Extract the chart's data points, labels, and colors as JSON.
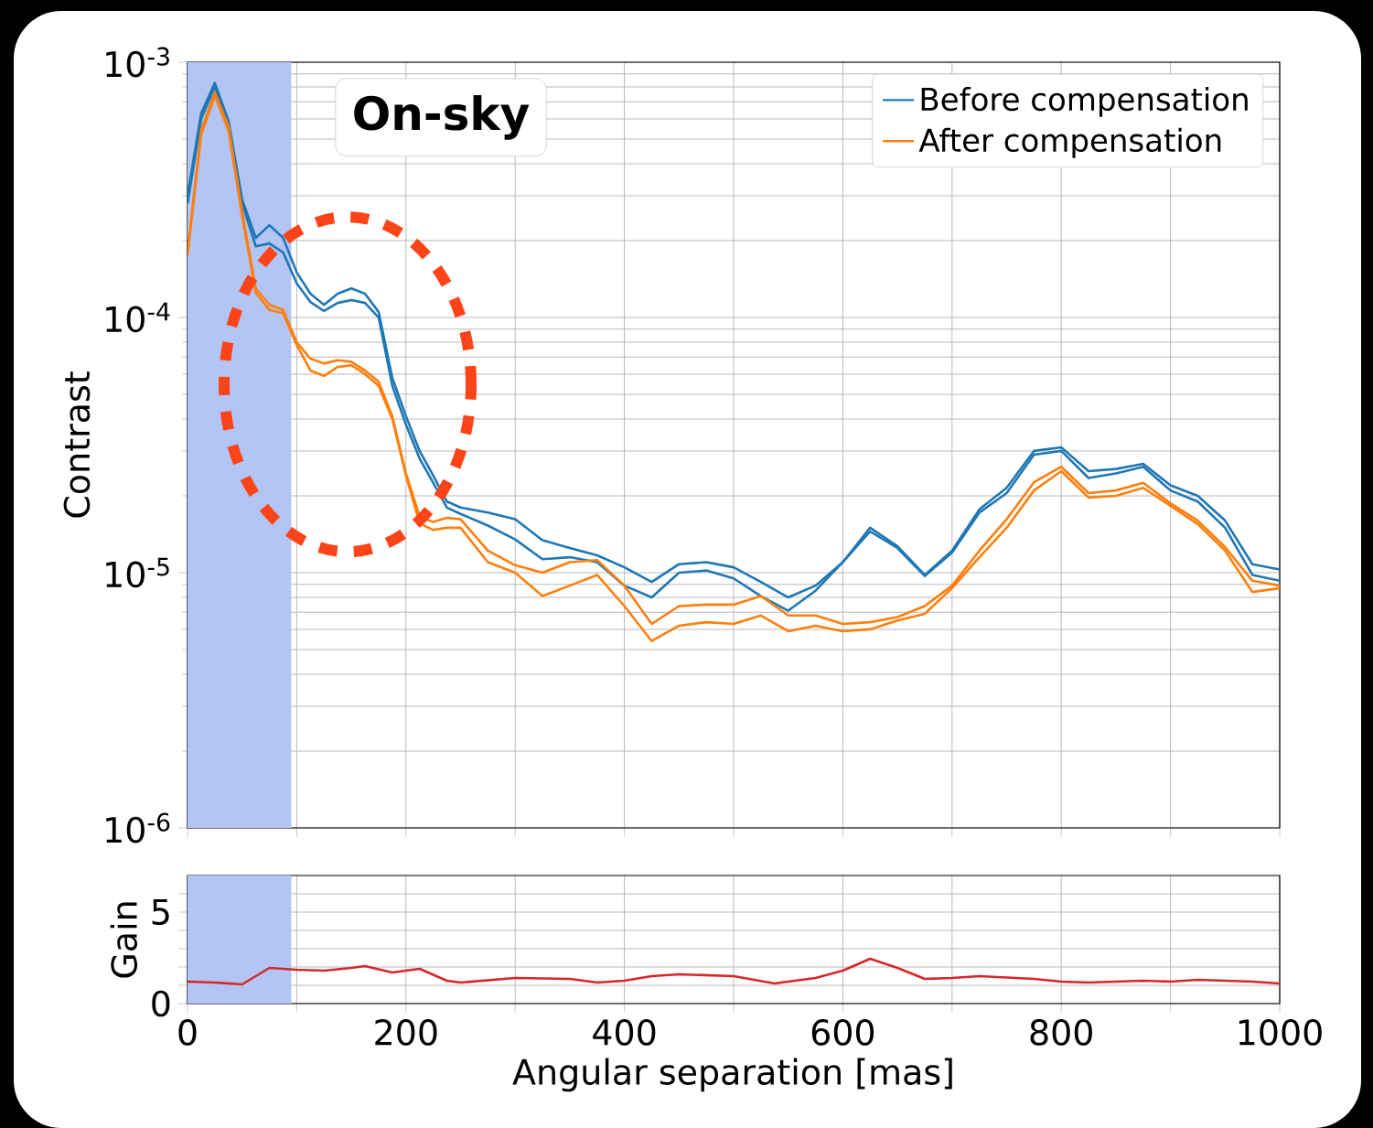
{
  "chart_data": [
    {
      "type": "line",
      "ylabel": "Contrast",
      "log": "y",
      "grid": true,
      "legend": "top right",
      "tick_labels": "y",
      "annotations": [
        "On-sky"
      ],
      "xlim": [
        0,
        1000
      ],
      "xticks": [
        {
          "value": 0,
          "label": null
        },
        {
          "value": 100,
          "label": null
        },
        {
          "value": 200,
          "label": null
        },
        {
          "value": 300,
          "label": null
        },
        {
          "value": 400,
          "label": null
        },
        {
          "value": 500,
          "label": null
        },
        {
          "value": 600,
          "label": null
        },
        {
          "value": 700,
          "label": null
        },
        {
          "value": 800,
          "label": null
        },
        {
          "value": 900,
          "label": null
        },
        {
          "value": 1000,
          "label": null
        }
      ],
      "ylim": [
        1e-06,
        0.001
      ],
      "yticks": [
        {
          "value": 1e-06,
          "label": "10$^{-6}$"
        },
        {
          "value": 1e-05,
          "label": "10$^{-5}$"
        },
        {
          "value": 0.0001,
          "label": "10$^{-4}$"
        },
        {
          "value": 0.001,
          "label": "10$^{-3}$"
        }
      ],
      "bands": [
        {
          "axis": "x",
          "from": 0,
          "to": 95,
          "color": "#b2c5f4"
        }
      ],
      "x": [
        0,
        12.5,
        25,
        37.5,
        50,
        62.5,
        75,
        87.5,
        100,
        112.5,
        125,
        137.5,
        150,
        162.5,
        175,
        187.5,
        200,
        212.5,
        225,
        237.5,
        250,
        275,
        300,
        325,
        350,
        375,
        400,
        425,
        450,
        475,
        500,
        525,
        550,
        575,
        600,
        625,
        650,
        675,
        700,
        725,
        750,
        775,
        800,
        825,
        850,
        875,
        900,
        925,
        950,
        975,
        1000
      ],
      "series": [
        {
          "name": "Before compensation",
          "color": "#1f77b4",
          "values": [
            0.0003,
            0.00063,
            0.00083,
            0.00059,
            0.00029,
            0.000205,
            0.00023,
            0.000205,
            0.00015,
            0.000124,
            0.000112,
            0.000124,
            0.00013,
            0.000124,
            0.000105,
            5.8e-05,
            4.1e-05,
            3e-05,
            2.4e-05,
            1.9e-05,
            1.8e-05,
            1.72e-05,
            1.62e-05,
            1.34e-05,
            1.25e-05,
            1.17e-05,
            1.05e-05,
            9.2e-06,
            1.08e-05,
            1.1e-05,
            1.05e-05,
            9.2e-06,
            8e-06,
            8.9e-06,
            1.1e-05,
            1.5e-05,
            1.27e-05,
            9.8e-06,
            1.22e-05,
            1.77e-05,
            2.15e-05,
            3e-05,
            3.1e-05,
            2.5e-05,
            2.55e-05,
            2.67e-05,
            2.2e-05,
            2e-05,
            1.6e-05,
            1.08e-05,
            1.03e-05
          ]
        },
        {
          "color": "#1f77b4",
          "values": [
            0.00028,
            0.0006,
            0.0008,
            0.00057,
            0.00028,
            0.00019,
            0.000195,
            0.00018,
            0.000136,
            0.000115,
            0.000106,
            0.000114,
            0.000117,
            0.000114,
            0.0001,
            5.4e-05,
            3.8e-05,
            2.8e-05,
            2.25e-05,
            1.8e-05,
            1.7e-05,
            1.53e-05,
            1.35e-05,
            1.13e-05,
            1.15e-05,
            1.1e-05,
            8.9e-06,
            8e-06,
            1e-05,
            1.02e-05,
            9.5e-06,
            8.1e-06,
            7.1e-06,
            8.5e-06,
            1.1e-05,
            1.45e-05,
            1.25e-05,
            9.7e-06,
            1.2e-05,
            1.72e-05,
            2.05e-05,
            2.9e-05,
            3e-05,
            2.35e-05,
            2.45e-05,
            2.6e-05,
            2.1e-05,
            1.9e-05,
            1.5e-05,
            9.8e-06,
            9.3e-06
          ]
        },
        {
          "name": "After compensation",
          "color": "#ff7f0e",
          "values": [
            0.00018,
            0.00054,
            0.00076,
            0.00056,
            0.00026,
            0.00013,
            0.000112,
            0.000107,
            8e-05,
            6.9e-05,
            6.6e-05,
            6.8e-05,
            6.7e-05,
            6.2e-05,
            5.6e-05,
            4.1e-05,
            2.45e-05,
            1.66e-05,
            1.58e-05,
            1.64e-05,
            1.62e-05,
            1.22e-05,
            1.07e-05,
            1e-05,
            1.1e-05,
            1.12e-05,
            8.9e-06,
            6.3e-06,
            7.4e-06,
            7.5e-06,
            7.5e-06,
            8.1e-06,
            6.8e-06,
            6.8e-06,
            6.3e-06,
            6.4e-06,
            6.7e-06,
            7.4e-06,
            8.9e-06,
            1.22e-05,
            1.62e-05,
            2.26e-05,
            2.6e-05,
            2.05e-05,
            2.1e-05,
            2.25e-05,
            1.87e-05,
            1.6e-05,
            1.26e-05,
            9.3e-06,
            8.9e-06
          ]
        },
        {
          "color": "#ff7f0e",
          "values": [
            0.000175,
            0.00052,
            0.00074,
            0.00054,
            0.00025,
            0.000125,
            0.000107,
            0.000104,
            7.8e-05,
            6.2e-05,
            5.9e-05,
            6.4e-05,
            6.5e-05,
            6e-05,
            5.4e-05,
            4e-05,
            2.4e-05,
            1.56e-05,
            1.47e-05,
            1.5e-05,
            1.5e-05,
            1.1e-05,
            1e-05,
            8.1e-06,
            8.9e-06,
            9.8e-06,
            7.4e-06,
            5.4e-06,
            6.2e-06,
            6.4e-06,
            6.3e-06,
            6.8e-06,
            5.9e-06,
            6.2e-06,
            5.9e-06,
            6e-06,
            6.5e-06,
            6.9e-06,
            8.7e-06,
            1.15e-05,
            1.5e-05,
            2.1e-05,
            2.5e-05,
            1.97e-05,
            2e-05,
            2.15e-05,
            1.83e-05,
            1.55e-05,
            1.22e-05,
            8.4e-06,
            8.7e-06
          ]
        }
      ]
    },
    {
      "type": "line",
      "xlabel": "Angular separation [mas]",
      "ylabel": "Gain",
      "grid": true,
      "xlim": [
        0,
        1000
      ],
      "xticks": [
        0,
        {
          "value": 100,
          "label": null
        },
        200,
        {
          "value": 300,
          "label": null
        },
        400,
        {
          "value": 500,
          "label": null
        },
        600,
        {
          "value": 700,
          "label": null
        },
        800,
        {
          "value": 900,
          "label": null
        },
        1000
      ],
      "ylim": [
        0,
        7
      ],
      "yticks": [
        0,
        {
          "value": 1,
          "label": null
        },
        {
          "value": 2,
          "label": null
        },
        {
          "value": 3,
          "label": null
        },
        {
          "value": 4,
          "label": null
        },
        5,
        {
          "value": 6,
          "label": null
        }
      ],
      "bands": [
        {
          "axis": "x",
          "from": 0,
          "to": 95,
          "color": "#b2c5f4"
        }
      ],
      "series": [
        {
          "color": "#d62728",
          "x": [
            0,
            25,
            50,
            62.5,
            75,
            100,
            125,
            150,
            162.5,
            187.5,
            212.5,
            237.5,
            250,
            300,
            350,
            375,
            400,
            425,
            450,
            500,
            537.5,
            575,
            600,
            625,
            650,
            675,
            700,
            725,
            775,
            800,
            825,
            875,
            900,
            925,
            975,
            1000
          ],
          "values": [
            1.2,
            1.15,
            1.05,
            1.5,
            1.95,
            1.85,
            1.8,
            1.95,
            2.05,
            1.7,
            1.9,
            1.25,
            1.15,
            1.4,
            1.35,
            1.15,
            1.25,
            1.5,
            1.6,
            1.5,
            1.1,
            1.4,
            1.8,
            2.45,
            1.95,
            1.35,
            1.4,
            1.5,
            1.35,
            1.2,
            1.15,
            1.25,
            1.2,
            1.3,
            1.2,
            1.1
          ]
        }
      ]
    }
  ]
}
